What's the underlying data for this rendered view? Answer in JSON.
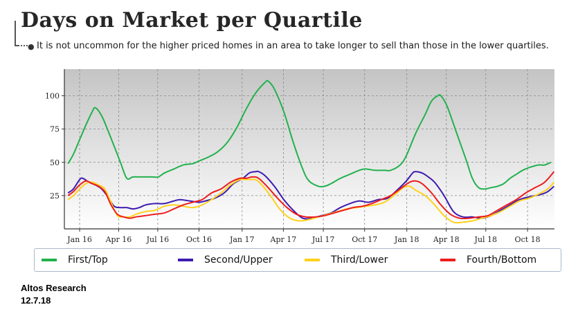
{
  "title": "Days on Market per Quartile",
  "subtitle": "It is not uncommon for the higher priced homes in an area to take longer to sell than those in the lower quartiles.",
  "source": {
    "line1": "Altos Research",
    "line2": "12.7.18"
  },
  "colors": {
    "plot_bg_top": "#c4c4c4",
    "plot_bg_bottom": "#ffffff",
    "grid": "#888888"
  },
  "chart_data": {
    "type": "line",
    "title": "Days on Market per Quartile",
    "xlabel": "",
    "ylabel": "",
    "ylim": [
      0,
      120
    ],
    "xlim": [
      "2015-12-05",
      "2018-12-01"
    ],
    "yticks": [
      25,
      50,
      75,
      100
    ],
    "xticks": [
      {
        "label": "Jan 16",
        "date": "2016-01-08"
      },
      {
        "label": "Apr 16",
        "date": "2016-04-04"
      },
      {
        "label": "Jul 16",
        "date": "2016-06-30"
      },
      {
        "label": "Oct 16",
        "date": "2016-09-30"
      },
      {
        "label": "Jan 17",
        "date": "2017-01-04"
      },
      {
        "label": "Apr 17",
        "date": "2017-04-06"
      },
      {
        "label": "Jul 17",
        "date": "2017-07-04"
      },
      {
        "label": "Oct 17",
        "date": "2017-10-04"
      },
      {
        "label": "Jan 18",
        "date": "2018-01-06"
      },
      {
        "label": "Apr 18",
        "date": "2018-04-04"
      },
      {
        "label": "Jul 18",
        "date": "2018-07-01"
      },
      {
        "label": "Oct 18",
        "date": "2018-10-02"
      }
    ],
    "grid": true,
    "legend_position": "bottom",
    "series": [
      {
        "name": "First/Top",
        "color": "#22b14c",
        "points": [
          [
            "2015-12-13",
            49
          ],
          [
            "2015-12-25",
            56
          ],
          [
            "2016-01-08",
            67
          ],
          [
            "2016-01-22",
            78
          ],
          [
            "2016-02-05",
            88
          ],
          [
            "2016-02-12",
            91
          ],
          [
            "2016-02-26",
            85
          ],
          [
            "2016-03-11",
            74
          ],
          [
            "2016-03-25",
            62
          ],
          [
            "2016-04-08",
            50
          ],
          [
            "2016-04-22",
            38
          ],
          [
            "2016-05-06",
            39
          ],
          [
            "2016-05-27",
            39
          ],
          [
            "2016-06-17",
            39
          ],
          [
            "2016-07-01",
            39
          ],
          [
            "2016-07-15",
            42
          ],
          [
            "2016-08-05",
            45
          ],
          [
            "2016-08-26",
            48
          ],
          [
            "2016-09-16",
            49
          ],
          [
            "2016-09-30",
            51
          ],
          [
            "2016-10-21",
            54
          ],
          [
            "2016-11-11",
            58
          ],
          [
            "2016-12-02",
            65
          ],
          [
            "2016-12-23",
            76
          ],
          [
            "2017-01-13",
            90
          ],
          [
            "2017-02-03",
            102
          ],
          [
            "2017-02-24",
            110
          ],
          [
            "2017-03-03",
            111
          ],
          [
            "2017-03-17",
            105
          ],
          [
            "2017-04-07",
            88
          ],
          [
            "2017-04-28",
            65
          ],
          [
            "2017-05-19",
            45
          ],
          [
            "2017-06-02",
            36
          ],
          [
            "2017-06-23",
            32
          ],
          [
            "2017-07-07",
            32
          ],
          [
            "2017-07-21",
            34
          ],
          [
            "2017-08-11",
            38
          ],
          [
            "2017-09-01",
            41
          ],
          [
            "2017-09-22",
            44
          ],
          [
            "2017-10-06",
            45
          ],
          [
            "2017-10-27",
            44
          ],
          [
            "2017-11-17",
            44
          ],
          [
            "2017-12-01",
            44
          ],
          [
            "2017-12-22",
            48
          ],
          [
            "2018-01-05",
            55
          ],
          [
            "2018-01-26",
            72
          ],
          [
            "2018-02-16",
            86
          ],
          [
            "2018-03-02",
            96
          ],
          [
            "2018-03-16",
            100
          ],
          [
            "2018-03-23",
            100
          ],
          [
            "2018-04-06",
            92
          ],
          [
            "2018-04-27",
            72
          ],
          [
            "2018-05-18",
            52
          ],
          [
            "2018-06-01",
            38
          ],
          [
            "2018-06-15",
            31
          ],
          [
            "2018-06-29",
            30
          ],
          [
            "2018-07-13",
            31
          ],
          [
            "2018-07-27",
            32
          ],
          [
            "2018-08-10",
            34
          ],
          [
            "2018-08-24",
            38
          ],
          [
            "2018-09-07",
            41
          ],
          [
            "2018-09-21",
            44
          ],
          [
            "2018-10-05",
            46
          ],
          [
            "2018-10-26",
            48
          ],
          [
            "2018-11-09",
            48
          ],
          [
            "2018-11-23",
            50
          ]
        ]
      },
      {
        "name": "Second/Upper",
        "color": "#3d1bb0",
        "points": [
          [
            "2015-12-13",
            27
          ],
          [
            "2015-12-25",
            30
          ],
          [
            "2016-01-08",
            37
          ],
          [
            "2016-01-15",
            38
          ],
          [
            "2016-01-29",
            35
          ],
          [
            "2016-02-12",
            33
          ],
          [
            "2016-02-26",
            30
          ],
          [
            "2016-03-11",
            24
          ],
          [
            "2016-03-25",
            17
          ],
          [
            "2016-04-08",
            16
          ],
          [
            "2016-04-22",
            16
          ],
          [
            "2016-05-06",
            15
          ],
          [
            "2016-05-20",
            16
          ],
          [
            "2016-06-03",
            18
          ],
          [
            "2016-06-24",
            19
          ],
          [
            "2016-07-15",
            19
          ],
          [
            "2016-08-05",
            21
          ],
          [
            "2016-08-19",
            22
          ],
          [
            "2016-09-09",
            21
          ],
          [
            "2016-09-30",
            20
          ],
          [
            "2016-10-14",
            21
          ],
          [
            "2016-11-04",
            23
          ],
          [
            "2016-11-25",
            27
          ],
          [
            "2016-12-16",
            34
          ],
          [
            "2017-01-06",
            38
          ],
          [
            "2017-01-20",
            42
          ],
          [
            "2017-02-03",
            43
          ],
          [
            "2017-02-10",
            43
          ],
          [
            "2017-02-24",
            40
          ],
          [
            "2017-03-17",
            32
          ],
          [
            "2017-04-07",
            22
          ],
          [
            "2017-04-28",
            14
          ],
          [
            "2017-05-19",
            8
          ],
          [
            "2017-06-09",
            8
          ],
          [
            "2017-06-30",
            10
          ],
          [
            "2017-07-21",
            12
          ],
          [
            "2017-08-11",
            16
          ],
          [
            "2017-09-01",
            19
          ],
          [
            "2017-09-22",
            21
          ],
          [
            "2017-10-13",
            20
          ],
          [
            "2017-11-03",
            22
          ],
          [
            "2017-11-24",
            23
          ],
          [
            "2017-12-15",
            29
          ],
          [
            "2018-01-05",
            36
          ],
          [
            "2018-01-19",
            42
          ],
          [
            "2018-01-26",
            43
          ],
          [
            "2018-02-09",
            42
          ],
          [
            "2018-02-23",
            39
          ],
          [
            "2018-03-09",
            35
          ],
          [
            "2018-03-30",
            25
          ],
          [
            "2018-04-20",
            13
          ],
          [
            "2018-05-11",
            9
          ],
          [
            "2018-06-01",
            9
          ],
          [
            "2018-06-22",
            8
          ],
          [
            "2018-07-13",
            10
          ],
          [
            "2018-08-03",
            14
          ],
          [
            "2018-08-24",
            18
          ],
          [
            "2018-09-14",
            22
          ],
          [
            "2018-10-05",
            24
          ],
          [
            "2018-10-19",
            25
          ],
          [
            "2018-11-02",
            26
          ],
          [
            "2018-11-16",
            28
          ],
          [
            "2018-11-30",
            32
          ]
        ]
      },
      {
        "name": "Third/Lower",
        "color": "#ffd11a",
        "points": [
          [
            "2015-12-13",
            22
          ],
          [
            "2015-12-25",
            25
          ],
          [
            "2016-01-08",
            30
          ],
          [
            "2016-01-22",
            34
          ],
          [
            "2016-02-05",
            35
          ],
          [
            "2016-02-19",
            33
          ],
          [
            "2016-03-04",
            30
          ],
          [
            "2016-03-18",
            20
          ],
          [
            "2016-04-01",
            10
          ],
          [
            "2016-04-15",
            9
          ],
          [
            "2016-04-29",
            9
          ],
          [
            "2016-05-13",
            11
          ],
          [
            "2016-06-03",
            13
          ],
          [
            "2016-06-24",
            14
          ],
          [
            "2016-07-15",
            17
          ],
          [
            "2016-08-05",
            18
          ],
          [
            "2016-08-26",
            17
          ],
          [
            "2016-09-16",
            16
          ],
          [
            "2016-10-07",
            18
          ],
          [
            "2016-10-28",
            22
          ],
          [
            "2016-11-18",
            27
          ],
          [
            "2016-12-09",
            33
          ],
          [
            "2016-12-30",
            37
          ],
          [
            "2017-01-20",
            37
          ],
          [
            "2017-02-03",
            37
          ],
          [
            "2017-02-17",
            33
          ],
          [
            "2017-03-10",
            24
          ],
          [
            "2017-03-31",
            14
          ],
          [
            "2017-04-21",
            8
          ],
          [
            "2017-05-12",
            6
          ],
          [
            "2017-06-02",
            7
          ],
          [
            "2017-06-23",
            9
          ],
          [
            "2017-07-14",
            11
          ],
          [
            "2017-08-04",
            13
          ],
          [
            "2017-08-25",
            15
          ],
          [
            "2017-09-15",
            16
          ],
          [
            "2017-10-06",
            17
          ],
          [
            "2017-10-27",
            18
          ],
          [
            "2017-11-17",
            20
          ],
          [
            "2017-12-08",
            25
          ],
          [
            "2017-12-29",
            31
          ],
          [
            "2018-01-12",
            32
          ],
          [
            "2018-01-26",
            29
          ],
          [
            "2018-02-16",
            25
          ],
          [
            "2018-03-09",
            18
          ],
          [
            "2018-03-30",
            10
          ],
          [
            "2018-04-20",
            5
          ],
          [
            "2018-05-11",
            5
          ],
          [
            "2018-06-01",
            6
          ],
          [
            "2018-06-22",
            8
          ],
          [
            "2018-07-13",
            10
          ],
          [
            "2018-08-03",
            13
          ],
          [
            "2018-08-24",
            17
          ],
          [
            "2018-09-14",
            21
          ],
          [
            "2018-10-05",
            23
          ],
          [
            "2018-10-26",
            26
          ],
          [
            "2018-11-16",
            30
          ],
          [
            "2018-11-30",
            35
          ]
        ]
      },
      {
        "name": "Fourth/Bottom",
        "color": "#ee1c1c",
        "points": [
          [
            "2015-12-13",
            25
          ],
          [
            "2015-12-25",
            28
          ],
          [
            "2016-01-08",
            33
          ],
          [
            "2016-01-22",
            36
          ],
          [
            "2016-02-05",
            34
          ],
          [
            "2016-02-19",
            32
          ],
          [
            "2016-03-04",
            28
          ],
          [
            "2016-03-18",
            18
          ],
          [
            "2016-04-01",
            11
          ],
          [
            "2016-04-15",
            9
          ],
          [
            "2016-04-29",
            8
          ],
          [
            "2016-05-13",
            9
          ],
          [
            "2016-06-03",
            10
          ],
          [
            "2016-06-24",
            11
          ],
          [
            "2016-07-15",
            12
          ],
          [
            "2016-08-05",
            15
          ],
          [
            "2016-08-26",
            18
          ],
          [
            "2016-09-16",
            20
          ],
          [
            "2016-10-07",
            22
          ],
          [
            "2016-10-28",
            27
          ],
          [
            "2016-11-18",
            30
          ],
          [
            "2016-12-09",
            35
          ],
          [
            "2016-12-30",
            38
          ],
          [
            "2017-01-13",
            38
          ],
          [
            "2017-01-27",
            39
          ],
          [
            "2017-02-10",
            38
          ],
          [
            "2017-03-03",
            31
          ],
          [
            "2017-03-24",
            23
          ],
          [
            "2017-04-14",
            16
          ],
          [
            "2017-05-05",
            11
          ],
          [
            "2017-05-26",
            9
          ],
          [
            "2017-06-16",
            9
          ],
          [
            "2017-07-07",
            10
          ],
          [
            "2017-07-28",
            12
          ],
          [
            "2017-08-18",
            14
          ],
          [
            "2017-09-08",
            16
          ],
          [
            "2017-09-29",
            17
          ],
          [
            "2017-10-20",
            19
          ],
          [
            "2017-11-10",
            22
          ],
          [
            "2017-12-01",
            25
          ],
          [
            "2017-12-22",
            30
          ],
          [
            "2018-01-12",
            35
          ],
          [
            "2018-01-26",
            36
          ],
          [
            "2018-02-09",
            34
          ],
          [
            "2018-03-02",
            27
          ],
          [
            "2018-03-23",
            18
          ],
          [
            "2018-04-13",
            11
          ],
          [
            "2018-05-04",
            8
          ],
          [
            "2018-05-25",
            8
          ],
          [
            "2018-06-15",
            9
          ],
          [
            "2018-07-06",
            10
          ],
          [
            "2018-07-27",
            14
          ],
          [
            "2018-08-17",
            18
          ],
          [
            "2018-09-07",
            22
          ],
          [
            "2018-09-28",
            27
          ],
          [
            "2018-10-19",
            31
          ],
          [
            "2018-11-09",
            35
          ],
          [
            "2018-11-30",
            43
          ]
        ]
      }
    ]
  }
}
